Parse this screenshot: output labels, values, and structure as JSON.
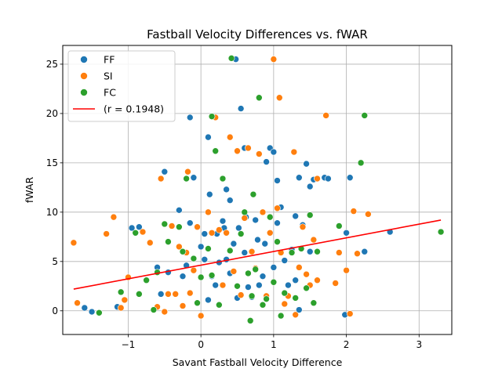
{
  "chart_data": {
    "type": "scatter",
    "title": "Fastball Velocity Differences vs. fWAR",
    "xlabel": "Savant Fastball Velocity Difference",
    "ylabel": "fWAR",
    "xlim": [
      -1.9,
      3.45
    ],
    "ylim": [
      -2.4,
      26.9
    ],
    "xticks": [
      -1,
      0,
      1,
      2,
      3
    ],
    "yticks": [
      0,
      5,
      10,
      15,
      20,
      25
    ],
    "grid": true,
    "legend_position": "top-left",
    "series": [
      {
        "name": "FF",
        "color": "#1f77b4",
        "points": [
          [
            -1.6,
            0.3
          ],
          [
            -1.5,
            -0.1
          ],
          [
            -1.15,
            0.4
          ],
          [
            -0.95,
            8.4
          ],
          [
            -0.85,
            8.5
          ],
          [
            -0.75,
            3.1
          ],
          [
            -0.6,
            4.4
          ],
          [
            -0.55,
            1.7
          ],
          [
            -0.5,
            14.1
          ],
          [
            -0.45,
            3.9
          ],
          [
            -0.3,
            10.2
          ],
          [
            -0.25,
            3.5
          ],
          [
            -0.2,
            4.6
          ],
          [
            -0.15,
            8.9
          ],
          [
            -0.15,
            19.6
          ],
          [
            -0.1,
            13.5
          ],
          [
            0.0,
            6.5
          ],
          [
            0.05,
            5.2
          ],
          [
            0.05,
            7.8
          ],
          [
            0.1,
            17.6
          ],
          [
            0.1,
            1.1
          ],
          [
            0.12,
            11.8
          ],
          [
            0.15,
            3.5
          ],
          [
            0.2,
            2.6
          ],
          [
            0.22,
            7.8
          ],
          [
            0.25,
            4.9
          ],
          [
            0.3,
            9.1
          ],
          [
            0.32,
            8.4
          ],
          [
            0.35,
            12.3
          ],
          [
            0.35,
            5.2
          ],
          [
            0.4,
            11.2
          ],
          [
            0.4,
            3.8
          ],
          [
            0.45,
            6.8
          ],
          [
            0.48,
            25.5
          ],
          [
            0.5,
            1.3
          ],
          [
            0.52,
            8.4
          ],
          [
            0.55,
            20.5
          ],
          [
            0.6,
            16.5
          ],
          [
            0.6,
            5.9
          ],
          [
            0.62,
            9.5
          ],
          [
            0.65,
            2.4
          ],
          [
            0.7,
            1.4
          ],
          [
            0.75,
            9.2
          ],
          [
            0.78,
            7.2
          ],
          [
            0.8,
            2.6
          ],
          [
            0.85,
            3.5
          ],
          [
            0.88,
            6.8
          ],
          [
            0.9,
            15.1
          ],
          [
            0.95,
            16.5
          ],
          [
            1.0,
            16.1
          ],
          [
            1.0,
            4.4
          ],
          [
            1.05,
            8.9
          ],
          [
            1.05,
            13.2
          ],
          [
            1.1,
            10.5
          ],
          [
            1.15,
            5.1
          ],
          [
            1.2,
            2.6
          ],
          [
            1.25,
            6.2
          ],
          [
            1.3,
            3.1
          ],
          [
            1.3,
            9.6
          ],
          [
            1.35,
            0.1
          ],
          [
            1.35,
            13.5
          ],
          [
            1.4,
            8.7
          ],
          [
            1.45,
            14.9
          ],
          [
            1.5,
            12.6
          ],
          [
            1.5,
            6.0
          ],
          [
            1.55,
            13.3
          ],
          [
            1.6,
            13.4
          ],
          [
            1.7,
            13.5
          ],
          [
            1.75,
            13.4
          ],
          [
            1.98,
            -0.4
          ],
          [
            2.0,
            7.9
          ],
          [
            2.05,
            13.5
          ],
          [
            2.25,
            6.0
          ],
          [
            2.6,
            8.0
          ]
        ]
      },
      {
        "name": "SI",
        "color": "#ff7f0e",
        "points": [
          [
            -1.75,
            6.9
          ],
          [
            -1.7,
            0.8
          ],
          [
            -1.3,
            7.8
          ],
          [
            -1.2,
            9.5
          ],
          [
            -1.1,
            0.3
          ],
          [
            -1.05,
            1.1
          ],
          [
            -1.0,
            3.4
          ],
          [
            -0.8,
            8.0
          ],
          [
            -0.7,
            6.9
          ],
          [
            -0.6,
            0.4
          ],
          [
            -0.55,
            13.4
          ],
          [
            -0.5,
            -0.1
          ],
          [
            -0.45,
            1.7
          ],
          [
            -0.4,
            8.6
          ],
          [
            -0.35,
            1.7
          ],
          [
            -0.3,
            6.5
          ],
          [
            -0.25,
            0.5
          ],
          [
            -0.2,
            5.9
          ],
          [
            -0.18,
            14.1
          ],
          [
            -0.15,
            1.8
          ],
          [
            -0.1,
            4.1
          ],
          [
            -0.05,
            8.5
          ],
          [
            0.0,
            -0.5
          ],
          [
            0.1,
            10.0
          ],
          [
            0.15,
            7.9
          ],
          [
            0.2,
            19.6
          ],
          [
            0.25,
            8.2
          ],
          [
            0.3,
            2.6
          ],
          [
            0.35,
            7.9
          ],
          [
            0.4,
            17.6
          ],
          [
            0.45,
            4.0
          ],
          [
            0.5,
            16.2
          ],
          [
            0.55,
            1.6
          ],
          [
            0.6,
            9.4
          ],
          [
            0.65,
            16.5
          ],
          [
            0.7,
            6.0
          ],
          [
            0.75,
            4.3
          ],
          [
            0.8,
            15.9
          ],
          [
            0.85,
            10.0
          ],
          [
            0.9,
            1.5
          ],
          [
            0.95,
            7.9
          ],
          [
            1.0,
            25.5
          ],
          [
            1.05,
            10.4
          ],
          [
            1.08,
            21.6
          ],
          [
            1.1,
            5.9
          ],
          [
            1.15,
            0.7
          ],
          [
            1.2,
            1.5
          ],
          [
            1.28,
            16.1
          ],
          [
            1.3,
            -0.4
          ],
          [
            1.35,
            4.4
          ],
          [
            1.4,
            8.5
          ],
          [
            1.45,
            3.7
          ],
          [
            1.5,
            2.6
          ],
          [
            1.55,
            7.2
          ],
          [
            1.6,
            3.1
          ],
          [
            1.6,
            13.4
          ],
          [
            1.72,
            19.8
          ],
          [
            1.85,
            2.8
          ],
          [
            1.9,
            5.9
          ],
          [
            2.0,
            4.1
          ],
          [
            2.05,
            -0.3
          ],
          [
            2.1,
            10.1
          ],
          [
            2.15,
            5.8
          ],
          [
            2.3,
            9.8
          ]
        ]
      },
      {
        "name": "FC",
        "color": "#2ca02c",
        "points": [
          [
            -1.4,
            -0.2
          ],
          [
            -1.1,
            1.9
          ],
          [
            -0.9,
            7.9
          ],
          [
            -0.85,
            1.7
          ],
          [
            -0.75,
            3.1
          ],
          [
            -0.65,
            0.1
          ],
          [
            -0.6,
            3.9
          ],
          [
            -0.5,
            8.8
          ],
          [
            -0.45,
            7.0
          ],
          [
            -0.3,
            8.5
          ],
          [
            -0.25,
            6.0
          ],
          [
            -0.2,
            13.4
          ],
          [
            -0.1,
            5.3
          ],
          [
            -0.05,
            0.8
          ],
          [
            0.0,
            3.4
          ],
          [
            0.1,
            6.3
          ],
          [
            0.15,
            3.6
          ],
          [
            0.15,
            19.7
          ],
          [
            0.2,
            16.2
          ],
          [
            0.25,
            0.6
          ],
          [
            0.3,
            13.4
          ],
          [
            0.4,
            6.1
          ],
          [
            0.42,
            25.6
          ],
          [
            0.5,
            2.5
          ],
          [
            0.55,
            7.8
          ],
          [
            0.6,
            10.0
          ],
          [
            0.65,
            3.8
          ],
          [
            0.68,
            -1.0
          ],
          [
            0.7,
            1.5
          ],
          [
            0.72,
            11.8
          ],
          [
            0.75,
            4.2
          ],
          [
            0.8,
            21.6
          ],
          [
            0.85,
            0.6
          ],
          [
            0.9,
            1.2
          ],
          [
            0.95,
            9.5
          ],
          [
            1.0,
            2.9
          ],
          [
            1.05,
            7.0
          ],
          [
            1.1,
            -0.5
          ],
          [
            1.15,
            1.8
          ],
          [
            1.25,
            5.9
          ],
          [
            1.3,
            1.3
          ],
          [
            1.38,
            6.3
          ],
          [
            1.45,
            2.3
          ],
          [
            1.5,
            9.7
          ],
          [
            1.55,
            0.8
          ],
          [
            1.6,
            6.0
          ],
          [
            1.9,
            8.6
          ],
          [
            2.2,
            15.0
          ],
          [
            2.25,
            19.8
          ],
          [
            3.3,
            8.0
          ]
        ]
      }
    ],
    "trendline": {
      "label": "(r = 0.1948)",
      "color": "#ff0000",
      "x": [
        -1.75,
        3.3
      ],
      "y": [
        2.2,
        9.2
      ]
    }
  }
}
